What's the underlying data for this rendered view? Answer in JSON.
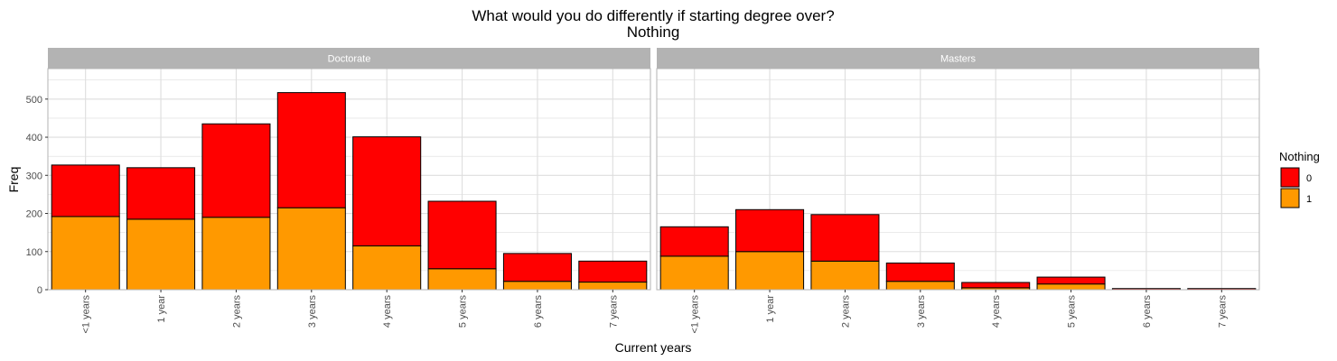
{
  "chart_data": {
    "type": "bar",
    "stacked": true,
    "title": "What would you do differently if starting degree over?",
    "subtitle": "Nothing",
    "xlabel": "Current years",
    "ylabel": "Freq",
    "ylim": [
      0,
      580
    ],
    "yticks": [
      0,
      100,
      200,
      300,
      400,
      500
    ],
    "grid": true,
    "legend": {
      "title": "Nothing",
      "position": "right",
      "entries": [
        {
          "label": "0",
          "color": "#ff0000"
        },
        {
          "label": "1",
          "color": "#ff9900"
        }
      ]
    },
    "categories": [
      "<1 years",
      "1 year",
      "2 years",
      "3 years",
      "4 years",
      "5 years",
      "6 years",
      "7 years"
    ],
    "panels": [
      {
        "name": "Doctorate",
        "series": [
          {
            "name": "1",
            "values": [
              192,
              185,
              190,
              215,
              115,
              55,
              22,
              20
            ]
          },
          {
            "name": "0",
            "values": [
              135,
              135,
              245,
              302,
              286,
              177,
              73,
              55
            ]
          }
        ]
      },
      {
        "name": "Masters",
        "series": [
          {
            "name": "1",
            "values": [
              88,
              100,
              75,
              22,
              5,
              15,
              0,
              0
            ]
          },
          {
            "name": "0",
            "values": [
              77,
              110,
              122,
              48,
              14,
              18,
              3,
              3
            ]
          }
        ]
      }
    ]
  },
  "colors": {
    "strip_bg": "#b3b3b3",
    "grid": "#dedede",
    "panel_border": "#b3b3b3",
    "bar_outline": "#000000"
  }
}
